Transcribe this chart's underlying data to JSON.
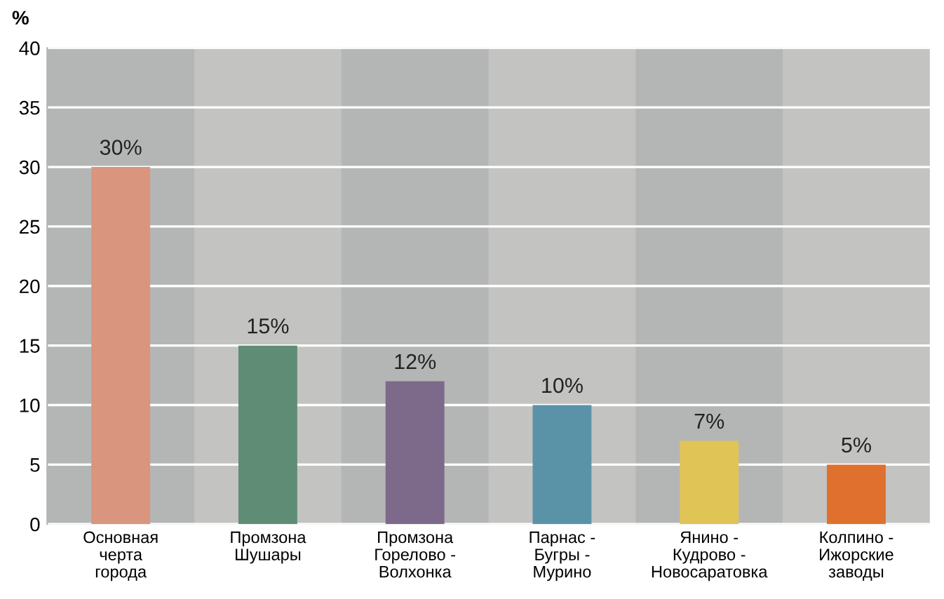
{
  "chart_data": {
    "type": "bar",
    "ylabel": "%",
    "categories": [
      "Основная\nчерта\nгорода",
      "Промзона\nШушары",
      "Промзона\nГорелово -\nВолхонка",
      "Парнас -\nБугры -\nМурино",
      "Янино -\nКудрово -\nНовосаратовка",
      "Колпино -\nИжорские\nзаводы"
    ],
    "values": [
      30,
      15,
      12,
      10,
      7,
      5
    ],
    "value_labels": [
      "30%",
      "15%",
      "12%",
      "10%",
      "7%",
      "5%"
    ],
    "colors": [
      "#d9957e",
      "#5f8c74",
      "#7d6a8a",
      "#5a93a8",
      "#e0c455",
      "#e0702e"
    ],
    "ylim": [
      0,
      40
    ],
    "yticks": [
      0,
      5,
      10,
      15,
      20,
      25,
      30,
      35,
      40
    ],
    "grid": "y"
  }
}
